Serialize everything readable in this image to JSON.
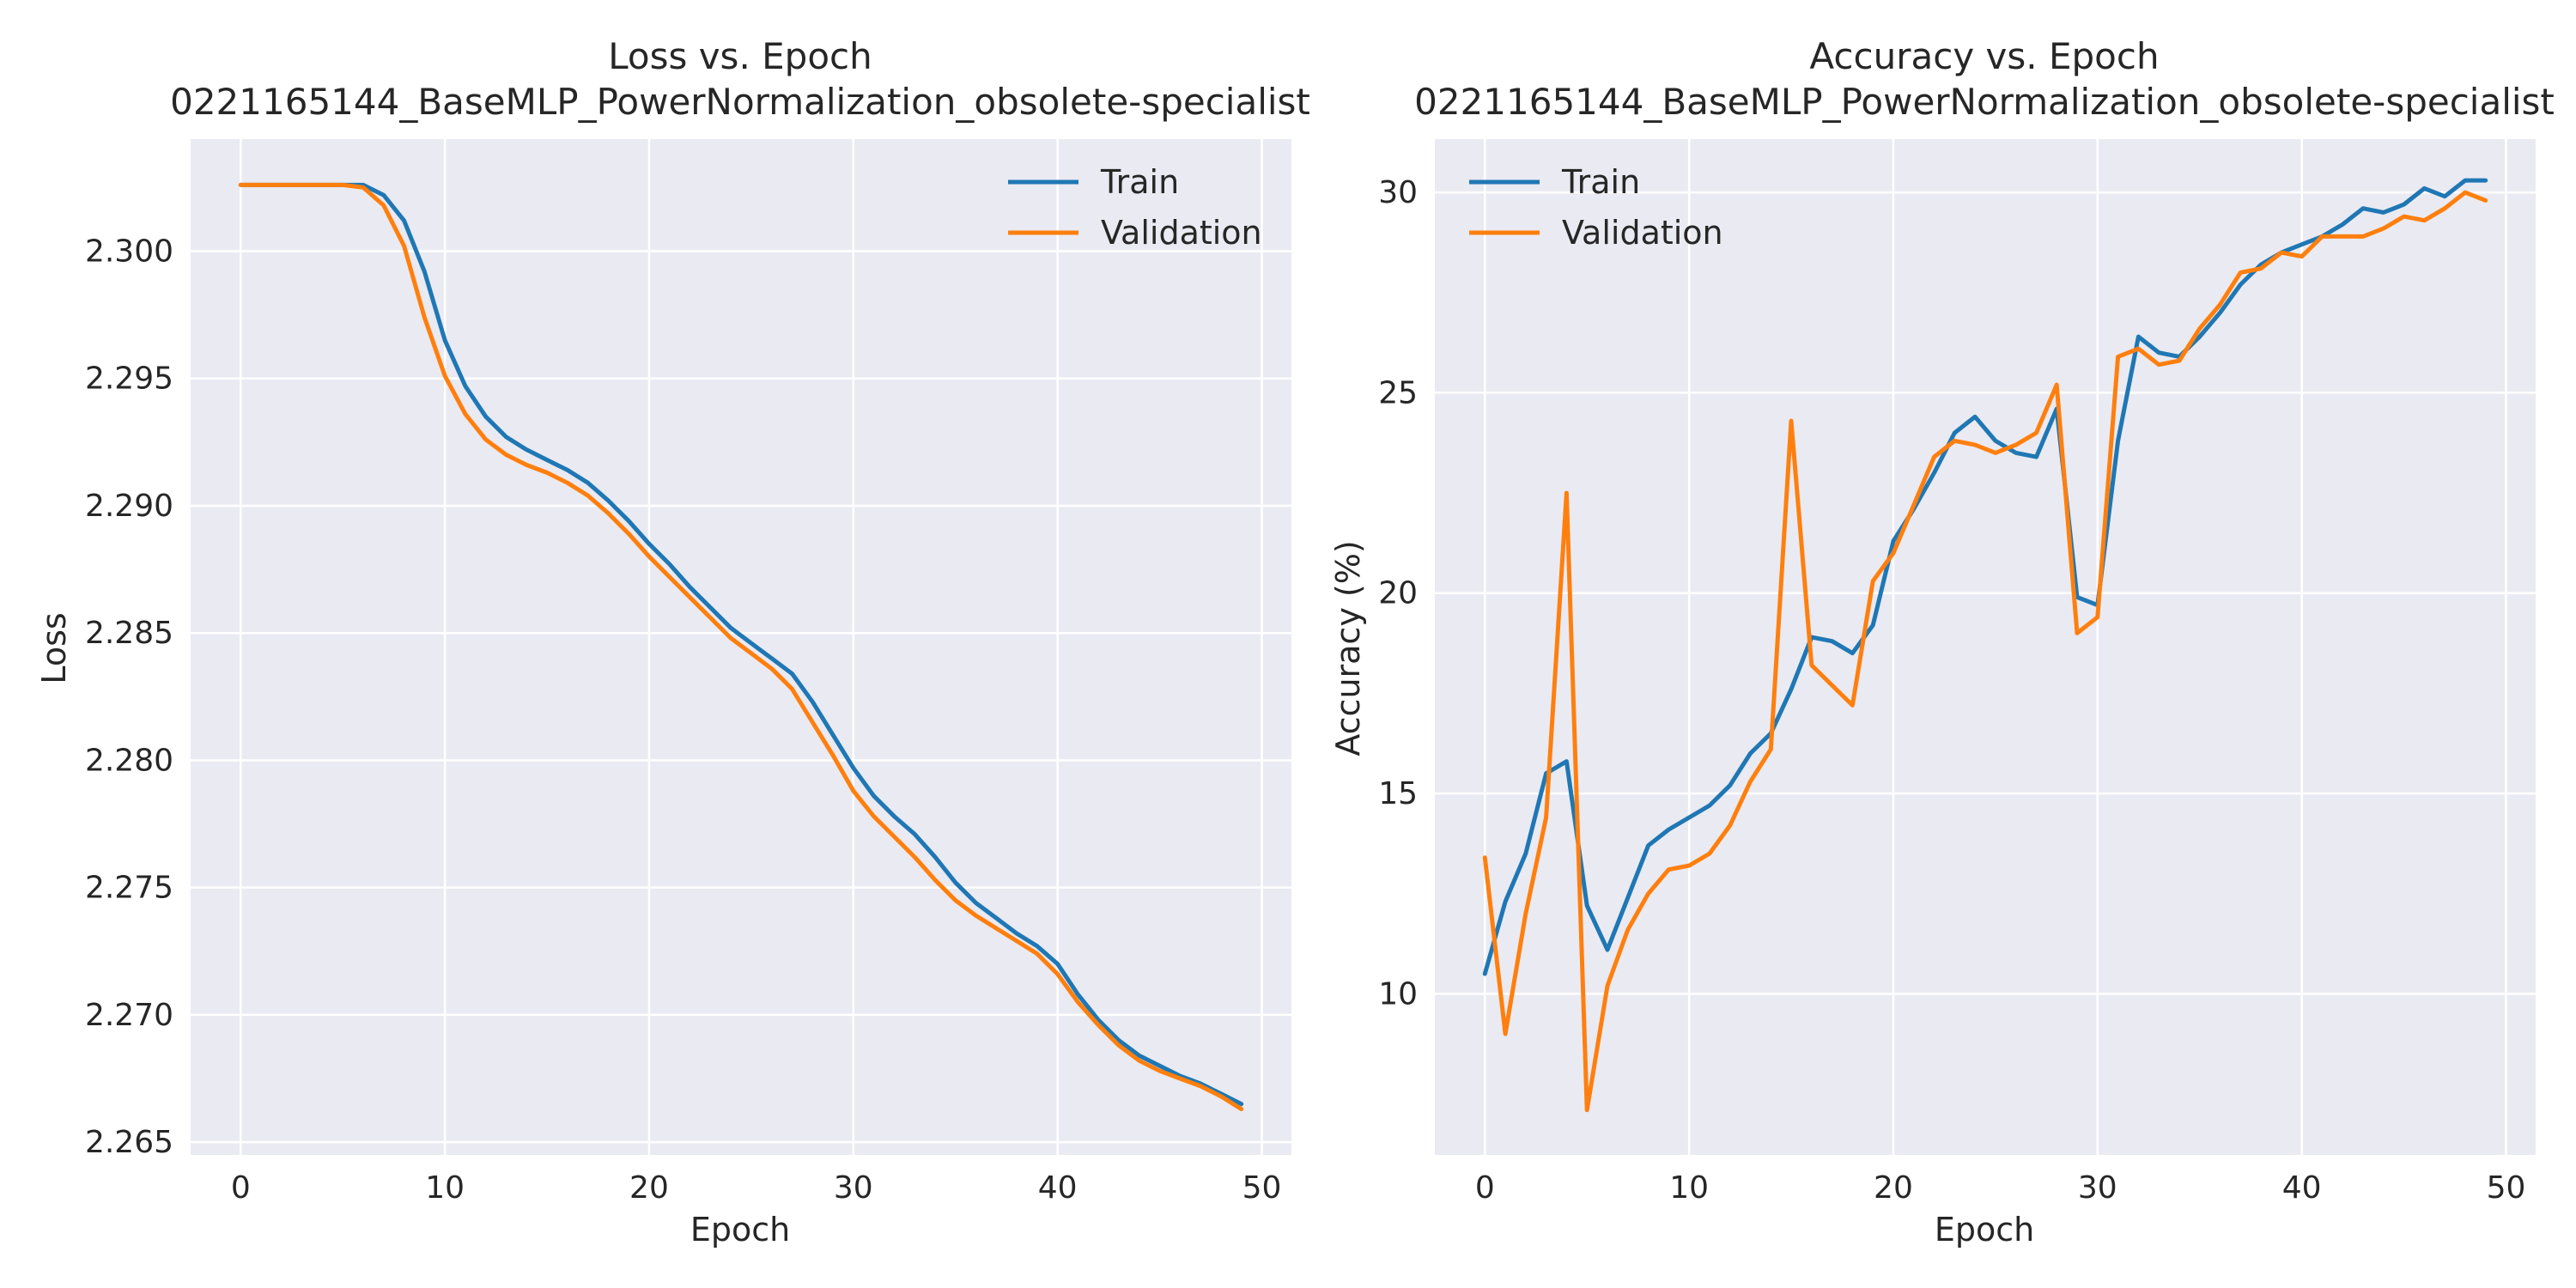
{
  "chart_data": [
    {
      "type": "line",
      "title": "Loss vs. Epoch",
      "subtitle": "0221165144_BaseMLP_PowerNormalization_obsolete-specialist",
      "xlabel": "Epoch",
      "ylabel": "Loss",
      "xlim": [
        -2.45,
        51.45
      ],
      "ylim": [
        2.2645,
        2.3044
      ],
      "xticks": [
        0,
        10,
        20,
        30,
        40,
        50
      ],
      "yticks": [
        2.265,
        2.27,
        2.275,
        2.28,
        2.285,
        2.29,
        2.295,
        2.3
      ],
      "ytick_labels": [
        "2.265",
        "2.270",
        "2.275",
        "2.280",
        "2.285",
        "2.290",
        "2.295",
        "2.300"
      ],
      "grid": true,
      "legend": "top-right",
      "x": [
        0,
        1,
        2,
        3,
        4,
        5,
        6,
        7,
        8,
        9,
        10,
        11,
        12,
        13,
        14,
        15,
        16,
        17,
        18,
        19,
        20,
        21,
        22,
        23,
        24,
        25,
        26,
        27,
        28,
        29,
        30,
        31,
        32,
        33,
        34,
        35,
        36,
        37,
        38,
        39,
        40,
        41,
        42,
        43,
        44,
        45,
        46,
        47,
        48,
        49
      ],
      "series": [
        {
          "name": "Train",
          "color": "#1f77b4",
          "values": [
            2.3026,
            2.3026,
            2.3026,
            2.3026,
            2.3026,
            2.3026,
            2.3026,
            2.3022,
            2.3012,
            2.2992,
            2.2965,
            2.2947,
            2.2935,
            2.2927,
            2.2922,
            2.2918,
            2.2914,
            2.2909,
            2.2902,
            2.2894,
            2.2885,
            2.2877,
            2.2868,
            2.286,
            2.2852,
            2.2846,
            2.284,
            2.2834,
            2.2823,
            2.281,
            2.2797,
            2.2786,
            2.2778,
            2.2771,
            2.2762,
            2.2752,
            2.2744,
            2.2738,
            2.2732,
            2.2727,
            2.272,
            2.2708,
            2.2698,
            2.269,
            2.2684,
            2.268,
            2.2676,
            2.2673,
            2.2669,
            2.2665
          ]
        },
        {
          "name": "Validation",
          "color": "#ff7f0e",
          "values": [
            2.3026,
            2.3026,
            2.3026,
            2.3026,
            2.3026,
            2.3026,
            2.3025,
            2.3018,
            2.3002,
            2.2974,
            2.2951,
            2.2936,
            2.2926,
            2.292,
            2.2916,
            2.2913,
            2.2909,
            2.2904,
            2.2897,
            2.2889,
            2.288,
            2.2872,
            2.2864,
            2.2856,
            2.2848,
            2.2842,
            2.2836,
            2.2828,
            2.2815,
            2.2802,
            2.2788,
            2.2778,
            2.277,
            2.2762,
            2.2753,
            2.2745,
            2.2739,
            2.2734,
            2.2729,
            2.2724,
            2.2716,
            2.2705,
            2.2696,
            2.2688,
            2.2682,
            2.2678,
            2.2675,
            2.2672,
            2.2668,
            2.2663
          ]
        }
      ]
    },
    {
      "type": "line",
      "title": "Accuracy vs. Epoch",
      "subtitle": "0221165144_BaseMLP_PowerNormalization_obsolete-specialist",
      "xlabel": "Epoch",
      "ylabel": "Accuracy (%)",
      "xlim": [
        -2.45,
        51.45
      ],
      "ylim": [
        5.98,
        31.33
      ],
      "xticks": [
        0,
        10,
        20,
        30,
        40,
        50
      ],
      "yticks": [
        10,
        15,
        20,
        25,
        30
      ],
      "ytick_labels": [
        "10",
        "15",
        "20",
        "25",
        "30"
      ],
      "grid": true,
      "legend": "top-left",
      "x": [
        0,
        1,
        2,
        3,
        4,
        5,
        6,
        7,
        8,
        9,
        10,
        11,
        12,
        13,
        14,
        15,
        16,
        17,
        18,
        19,
        20,
        21,
        22,
        23,
        24,
        25,
        26,
        27,
        28,
        29,
        30,
        31,
        32,
        33,
        34,
        35,
        36,
        37,
        38,
        39,
        40,
        41,
        42,
        43,
        44,
        45,
        46,
        47,
        48,
        49
      ],
      "series": [
        {
          "name": "Train",
          "color": "#1f77b4",
          "values": [
            10.5,
            12.3,
            13.5,
            15.5,
            15.8,
            12.2,
            11.1,
            12.4,
            13.7,
            14.1,
            14.4,
            14.7,
            15.2,
            16.0,
            16.5,
            17.6,
            18.9,
            18.8,
            18.5,
            19.2,
            21.3,
            22.1,
            23.0,
            24.0,
            24.4,
            23.8,
            23.5,
            23.4,
            24.6,
            19.9,
            19.7,
            23.8,
            26.4,
            26.0,
            25.9,
            26.4,
            27.0,
            27.7,
            28.2,
            28.5,
            28.7,
            28.9,
            29.2,
            29.6,
            29.5,
            29.7,
            30.1,
            29.9,
            30.3,
            30.3
          ]
        },
        {
          "name": "Validation",
          "color": "#ff7f0e",
          "values": [
            13.4,
            9.0,
            12.0,
            14.4,
            22.5,
            7.1,
            10.2,
            11.6,
            12.5,
            13.1,
            13.2,
            13.5,
            14.2,
            15.3,
            16.1,
            24.3,
            18.2,
            17.7,
            17.2,
            20.3,
            21.0,
            22.2,
            23.4,
            23.8,
            23.7,
            23.5,
            23.7,
            24.0,
            25.2,
            19.0,
            19.4,
            25.9,
            26.1,
            25.7,
            25.8,
            26.6,
            27.2,
            28.0,
            28.1,
            28.5,
            28.4,
            28.9,
            28.9,
            28.9,
            29.1,
            29.4,
            29.3,
            29.6,
            30.0,
            29.8
          ]
        }
      ]
    }
  ]
}
